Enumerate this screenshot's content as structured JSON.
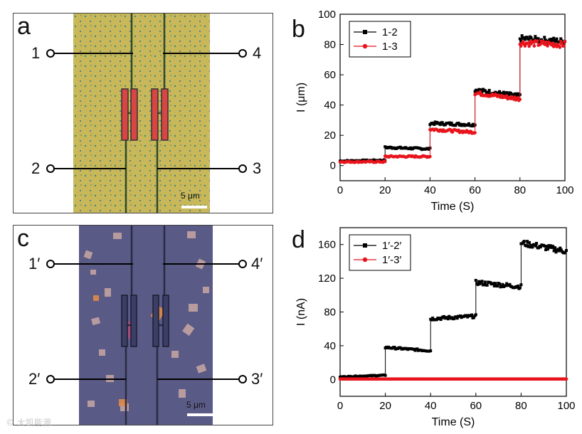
{
  "panels": {
    "a": {
      "letter": "a",
      "labels": [
        "1",
        "2",
        "3",
        "4"
      ],
      "scale": "5 μm"
    },
    "b": {
      "letter": "b"
    },
    "c": {
      "letter": "c",
      "labels": [
        "1′",
        "2′",
        "3′",
        "4′"
      ],
      "scale": "5 μm"
    },
    "d": {
      "letter": "d"
    }
  },
  "watermark": "© 大凯能源",
  "colors": {
    "black_series": "#000000",
    "red_series": "#e8141c",
    "photo_a_bg": "#c6b558",
    "photo_c_bg": "#5a5a86"
  },
  "chart_data": [
    {
      "type": "line",
      "panel": "b",
      "xlabel": "Time (S)",
      "ylabel": "I (μm)",
      "xlim": [
        0,
        100
      ],
      "ylim": [
        -10,
        100
      ],
      "xticks": [
        0,
        20,
        40,
        60,
        80,
        100
      ],
      "yticks": [
        0,
        20,
        40,
        60,
        80,
        100
      ],
      "legend_position": "top-left",
      "series": [
        {
          "name": "1-2",
          "color": "#000000",
          "marker": "square",
          "segments": [
            [
              0,
              20,
              3,
              3.5
            ],
            [
              20,
              40,
              12,
              11
            ],
            [
              40,
              60,
              28,
              27
            ],
            [
              60,
              80,
              50,
              46
            ],
            [
              80,
              100,
              84,
              82
            ]
          ]
        },
        {
          "name": "1-3",
          "color": "#e8141c",
          "marker": "circle",
          "segments": [
            [
              0,
              20,
              2.5,
              2.5
            ],
            [
              20,
              40,
              6,
              6
            ],
            [
              40,
              60,
              24,
              22
            ],
            [
              60,
              80,
              48,
              44
            ],
            [
              80,
              100,
              81,
              80
            ]
          ]
        }
      ]
    },
    {
      "type": "line",
      "panel": "d",
      "xlabel": "Time (S)",
      "ylabel": "I (nA)",
      "xlim": [
        0,
        100
      ],
      "ylim": [
        -20,
        180
      ],
      "xticks": [
        0,
        20,
        40,
        60,
        80,
        100
      ],
      "yticks": [
        0,
        40,
        80,
        120,
        160
      ],
      "legend_position": "top-left",
      "series": [
        {
          "name": "1′-2′",
          "color": "#000000",
          "marker": "square",
          "segments": [
            [
              0,
              20,
              3,
              5
            ],
            [
              20,
              40,
              38,
              34
            ],
            [
              40,
              60,
              72,
              75
            ],
            [
              60,
              80,
              115,
              110
            ],
            [
              80,
              100,
              162,
              152
            ]
          ]
        },
        {
          "name": "1′-3′",
          "color": "#e8141c",
          "marker": "circle",
          "segments": [
            [
              0,
              100,
              0.5,
              0.5
            ]
          ]
        }
      ]
    }
  ]
}
